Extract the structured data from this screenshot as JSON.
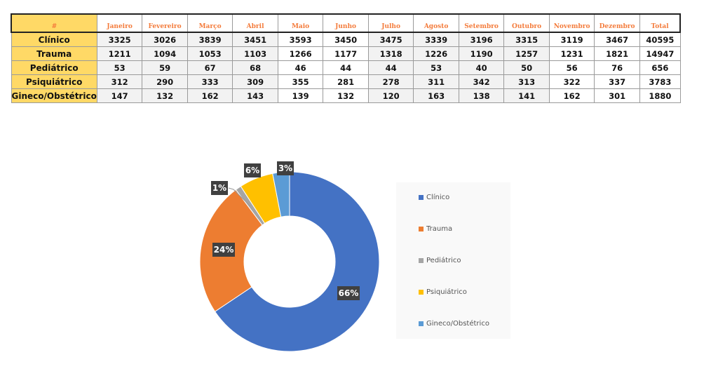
{
  "table": {
    "corner": "#",
    "columns": [
      "Janeiro",
      "Fevereiro",
      "Março",
      "Abril",
      "Maio",
      "Junho",
      "Julho",
      "Agosto",
      "Setembro",
      "Outubro",
      "Novembro",
      "Dezembro",
      "Total"
    ],
    "rows": [
      {
        "label": "Clínico",
        "values": [
          "3325",
          "3026",
          "3839",
          "3451",
          "3593",
          "3450",
          "3475",
          "3339",
          "3196",
          "3315",
          "3119",
          "3467",
          "40595"
        ]
      },
      {
        "label": "Trauma",
        "values": [
          "1211",
          "1094",
          "1053",
          "1103",
          "1266",
          "1177",
          "1318",
          "1226",
          "1190",
          "1257",
          "1231",
          "1821",
          "14947"
        ]
      },
      {
        "label": "Pediátrico",
        "values": [
          "53",
          "59",
          "67",
          "68",
          "46",
          "44",
          "44",
          "53",
          "40",
          "50",
          "56",
          "76",
          "656"
        ]
      },
      {
        "label": "Psiquiátrico",
        "values": [
          "312",
          "290",
          "333",
          "309",
          "355",
          "281",
          "278",
          "311",
          "342",
          "313",
          "322",
          "337",
          "3783"
        ]
      },
      {
        "label": "Gineco/Obstétrico",
        "values": [
          "147",
          "132",
          "162",
          "143",
          "139",
          "132",
          "120",
          "163",
          "138",
          "141",
          "162",
          "301",
          "1880"
        ]
      }
    ]
  },
  "chart_data": {
    "type": "pie",
    "variant": "donut",
    "categories": [
      "Clínico",
      "Trauma",
      "Pediátrico",
      "Psiquiátrico",
      "Gineco/Obstétrico"
    ],
    "values": [
      40595,
      14947,
      656,
      3783,
      1880
    ],
    "data_labels": [
      "66%",
      "24%",
      "1%",
      "6%",
      "3%"
    ],
    "colors": [
      "#4472c4",
      "#ed7d31",
      "#a5a5a5",
      "#ffc000",
      "#5b9bd5"
    ],
    "legend": "right"
  }
}
